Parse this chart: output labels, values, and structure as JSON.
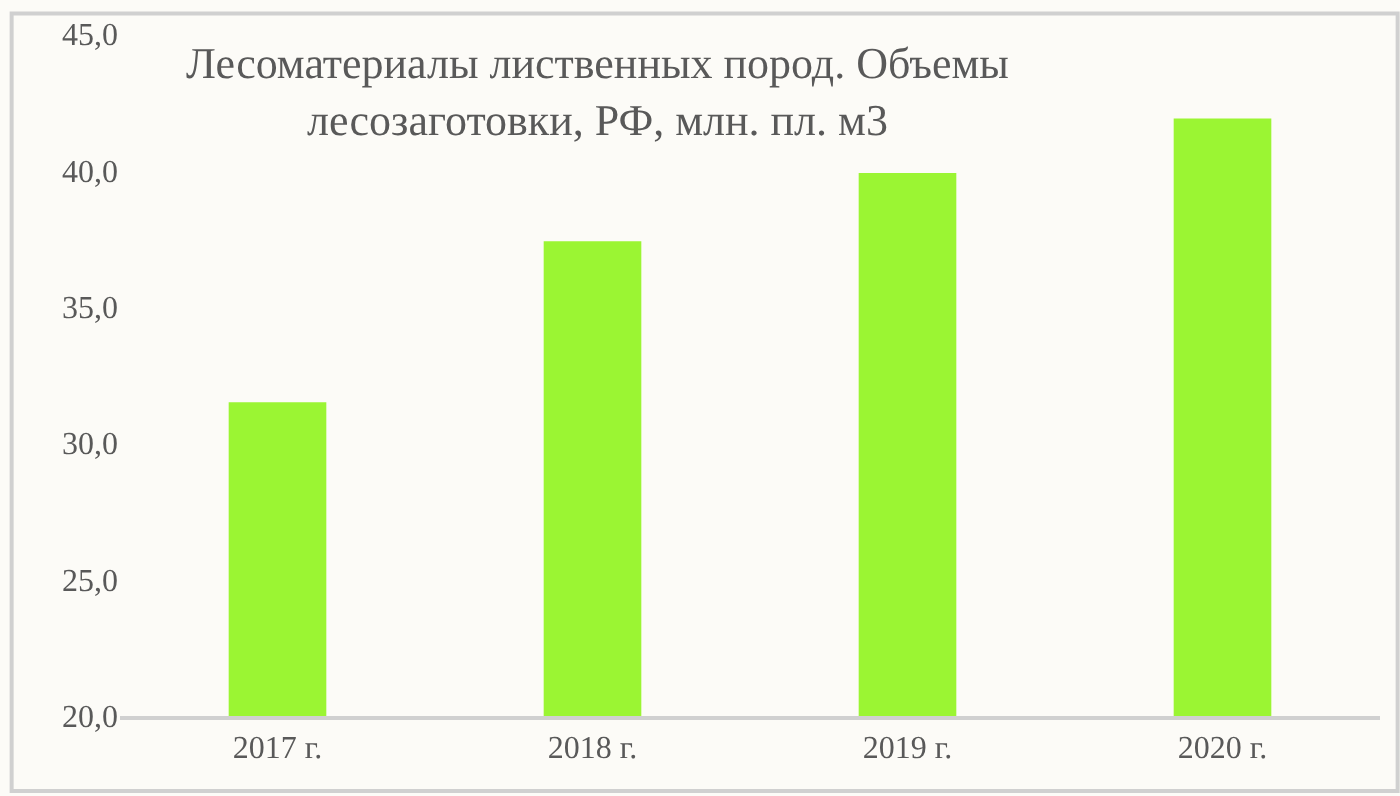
{
  "chart_data": {
    "type": "bar",
    "title": "Лесоматериалы лиственных пород. Объемы\nлесозаготовки, РФ, млн. пл. м3",
    "categories": [
      "2017 г.",
      "2018 г.",
      "2019 г.",
      "2020 г."
    ],
    "values": [
      31.5,
      37.4,
      39.9,
      41.9
    ],
    "color": "#9bf533",
    "ylim": [
      20,
      45
    ],
    "yticks": [
      {
        "value": 20,
        "label": "20,0"
      },
      {
        "value": 25,
        "label": "25,0"
      },
      {
        "value": 30,
        "label": "30,0"
      },
      {
        "value": 35,
        "label": "35,0"
      },
      {
        "value": 40,
        "label": "40,0"
      },
      {
        "value": 45,
        "label": "45,0"
      }
    ],
    "grid": false
  }
}
